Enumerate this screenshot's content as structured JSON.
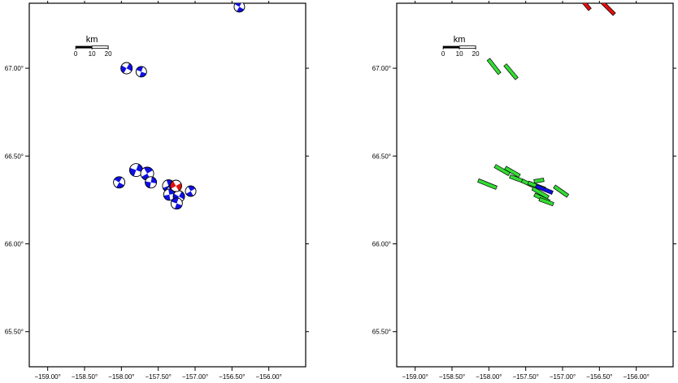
{
  "colors": {
    "frame": "#000000",
    "mechanism_fill": "#1010e0",
    "highlight_fill": "#e01010",
    "bar_green": "#33dd33",
    "bar_blue": "#1010e0",
    "bar_red": "#e01010",
    "bar_outline": "#000000"
  },
  "axes": {
    "lon_range": [
      -159.25,
      -155.5
    ],
    "lat_range": [
      65.3,
      67.37
    ],
    "x_ticks": [
      {
        "value": -159.0,
        "label": "−159.00°"
      },
      {
        "value": -158.5,
        "label": "−158.50°"
      },
      {
        "value": -158.0,
        "label": "−158.00°"
      },
      {
        "value": -157.5,
        "label": "−157.50°"
      },
      {
        "value": -157.0,
        "label": "−157.00°"
      },
      {
        "value": -156.5,
        "label": "−156.50°"
      },
      {
        "value": -156.0,
        "label": "−156.00°"
      }
    ],
    "y_ticks": [
      {
        "value": 67.0,
        "label": "67.00°"
      },
      {
        "value": 66.5,
        "label": "66.50°"
      },
      {
        "value": 66.0,
        "label": "66.00°"
      },
      {
        "value": 65.5,
        "label": "65.50°"
      }
    ]
  },
  "scale_bar": {
    "title": "km",
    "labels": [
      "0",
      "10",
      "20"
    ],
    "anchor_lon": -158.62,
    "anchor_lat": 67.12
  },
  "panels": [
    {
      "name": "mechanisms",
      "events": [
        {
          "lon": -156.4,
          "lat": 67.35,
          "mag": 6.5,
          "strike": 30,
          "style": "blue"
        },
        {
          "lon": -157.93,
          "lat": 67.0,
          "mag": 7,
          "strike": 120,
          "style": "blue"
        },
        {
          "lon": -157.73,
          "lat": 66.98,
          "mag": 6.5,
          "strike": 20,
          "style": "blue"
        },
        {
          "lon": -157.8,
          "lat": 66.42,
          "mag": 8,
          "strike": 110,
          "style": "blue"
        },
        {
          "lon": -157.65,
          "lat": 66.4,
          "mag": 8,
          "strike": 60,
          "style": "blue"
        },
        {
          "lon": -158.03,
          "lat": 66.35,
          "mag": 7,
          "strike": 30,
          "style": "blue"
        },
        {
          "lon": -157.6,
          "lat": 66.35,
          "mag": 7,
          "strike": 100,
          "style": "blue"
        },
        {
          "lon": -157.36,
          "lat": 66.33,
          "mag": 7.5,
          "strike": 70,
          "style": "blue"
        },
        {
          "lon": -157.3,
          "lat": 66.3,
          "mag": 8,
          "strike": 40,
          "style": "blue"
        },
        {
          "lon": -157.35,
          "lat": 66.28,
          "mag": 7,
          "strike": 80,
          "style": "blue"
        },
        {
          "lon": -157.22,
          "lat": 66.27,
          "mag": 7,
          "strike": 120,
          "style": "blue"
        },
        {
          "lon": -157.25,
          "lat": 66.23,
          "mag": 7,
          "strike": 20,
          "style": "blue"
        },
        {
          "lon": -157.06,
          "lat": 66.3,
          "mag": 6.5,
          "strike": 60,
          "style": "blue"
        },
        {
          "lon": -157.26,
          "lat": 66.33,
          "mag": 7,
          "strike": 150,
          "style": "red"
        }
      ]
    },
    {
      "name": "fault-traces",
      "events": [
        {
          "lon": -156.7,
          "lat": 67.37,
          "mag": 4,
          "angle": 50,
          "len": 20,
          "color": "red"
        },
        {
          "lon": -156.4,
          "lat": 67.35,
          "mag": 4,
          "angle": 45,
          "len": 26,
          "color": "red"
        },
        {
          "lon": -157.93,
          "lat": 67.01,
          "mag": 4,
          "angle": 52,
          "len": 22,
          "color": "green"
        },
        {
          "lon": -157.7,
          "lat": 66.98,
          "mag": 4,
          "angle": 50,
          "len": 22,
          "color": "green"
        },
        {
          "lon": -158.02,
          "lat": 66.34,
          "mag": 4,
          "angle": 22,
          "len": 24,
          "color": "green"
        },
        {
          "lon": -157.82,
          "lat": 66.42,
          "mag": 4,
          "angle": 30,
          "len": 20,
          "color": "green"
        },
        {
          "lon": -157.68,
          "lat": 66.41,
          "mag": 4,
          "angle": 30,
          "len": 20,
          "color": "green"
        },
        {
          "lon": -157.62,
          "lat": 66.37,
          "mag": 4,
          "angle": 20,
          "len": 18,
          "color": "green"
        },
        {
          "lon": -157.45,
          "lat": 66.34,
          "mag": 4,
          "angle": 25,
          "len": 20,
          "color": "green"
        },
        {
          "lon": -157.35,
          "lat": 66.33,
          "mag": 4,
          "angle": 20,
          "len": 22,
          "color": "green"
        },
        {
          "lon": -157.3,
          "lat": 66.29,
          "mag": 4,
          "angle": 30,
          "len": 22,
          "color": "green"
        },
        {
          "lon": -157.28,
          "lat": 66.26,
          "mag": 4,
          "angle": 25,
          "len": 20,
          "color": "green"
        },
        {
          "lon": -157.22,
          "lat": 66.24,
          "mag": 4,
          "angle": 20,
          "len": 18,
          "color": "green"
        },
        {
          "lon": -157.02,
          "lat": 66.3,
          "mag": 4,
          "angle": 35,
          "len": 20,
          "color": "green"
        },
        {
          "lon": -157.32,
          "lat": 66.36,
          "mag": 4,
          "angle": -10,
          "len": 12,
          "color": "green"
        },
        {
          "lon": -157.25,
          "lat": 66.31,
          "mag": 4,
          "angle": 22,
          "len": 22,
          "color": "blue"
        }
      ]
    }
  ]
}
